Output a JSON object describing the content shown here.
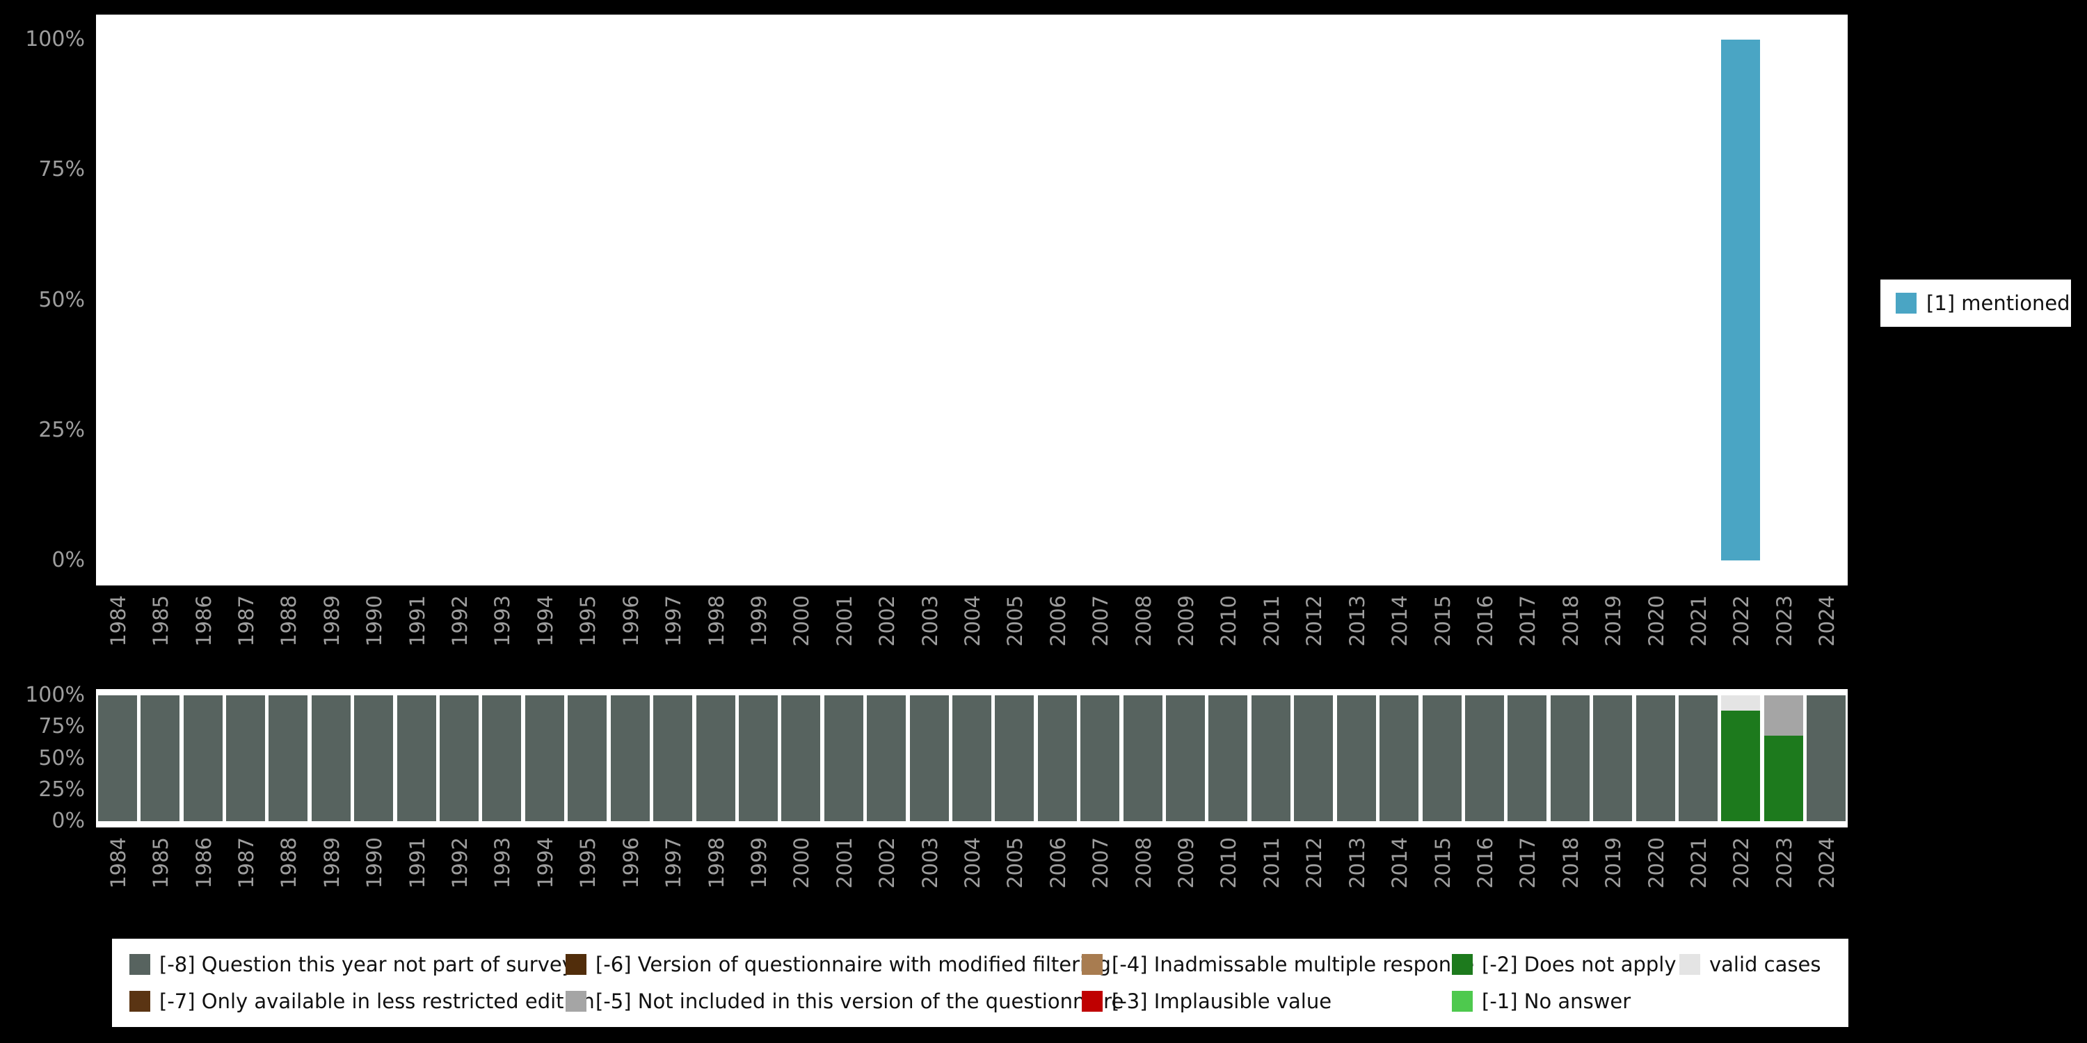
{
  "colors": {
    "background": "#000000",
    "plot_background": "#ffffff",
    "axis_text": "#9e9e9e",
    "mentioned": "#4aa5c4",
    "m8": "#57635f",
    "m7": "#5a3413",
    "m6": "#512d0b",
    "m5": "#a5a5a5",
    "m4": "#a87c50",
    "m3": "#bf0000",
    "m2": "#1d7a1d",
    "m1": "#4ec94e",
    "valid": "#e4e4e4"
  },
  "missing_legend": {
    "items": [
      {
        "label": "[-8] Question this year not part of survey",
        "color_key": "m8",
        "row": 1,
        "col": 1
      },
      {
        "label": "[-7] Only available in less restricted edition",
        "color_key": "m7",
        "row": 2,
        "col": 1
      },
      {
        "label": "[-6] Version of questionnaire with modified filtering",
        "color_key": "m6",
        "row": 1,
        "col": 2
      },
      {
        "label": "[-5] Not included in this version of the questionnaire",
        "color_key": "m5",
        "row": 2,
        "col": 2
      },
      {
        "label": "[-4] Inadmissable multiple response",
        "color_key": "m4",
        "row": 1,
        "col": 3
      },
      {
        "label": "[-3] Implausible value",
        "color_key": "m3",
        "row": 2,
        "col": 3
      },
      {
        "label": "[-2] Does not apply",
        "color_key": "m2",
        "row": 1,
        "col": 4
      },
      {
        "label": "[-1] No answer",
        "color_key": "m1",
        "row": 2,
        "col": 4
      },
      {
        "label": "valid cases",
        "color_key": "valid",
        "row": 1,
        "col": 5
      }
    ]
  },
  "chart_data": [
    {
      "type": "bar",
      "title": "",
      "xlabel": "",
      "ylabel": "",
      "ylim": [
        0,
        100
      ],
      "xtick_rotation": 90,
      "legend_position": "right",
      "yticks": [
        {
          "v": 0,
          "label": "0%"
        },
        {
          "v": 25,
          "label": "25%"
        },
        {
          "v": 50,
          "label": "50%"
        },
        {
          "v": 75,
          "label": "75%"
        },
        {
          "v": 100,
          "label": "100%"
        }
      ],
      "x": [
        "1984",
        "1985",
        "1986",
        "1987",
        "1988",
        "1989",
        "1990",
        "1991",
        "1992",
        "1993",
        "1994",
        "1995",
        "1996",
        "1997",
        "1998",
        "1999",
        "2000",
        "2001",
        "2002",
        "2003",
        "2004",
        "2005",
        "2006",
        "2007",
        "2008",
        "2009",
        "2010",
        "2011",
        "2012",
        "2013",
        "2014",
        "2015",
        "2016",
        "2017",
        "2018",
        "2019",
        "2020",
        "2021",
        "2022",
        "2023",
        "2024"
      ],
      "series": [
        {
          "name": "[1] mentioned",
          "color_key": "mentioned",
          "values": [
            0,
            0,
            0,
            0,
            0,
            0,
            0,
            0,
            0,
            0,
            0,
            0,
            0,
            0,
            0,
            0,
            0,
            0,
            0,
            0,
            0,
            0,
            0,
            0,
            0,
            0,
            0,
            0,
            0,
            0,
            0,
            0,
            0,
            0,
            0,
            0,
            0,
            0,
            100,
            0,
            0
          ]
        }
      ]
    },
    {
      "type": "bar",
      "stacked": true,
      "title": "",
      "xlabel": "",
      "ylabel": "",
      "ylim": [
        0,
        100
      ],
      "xtick_rotation": 90,
      "legend_position": "bottom",
      "yticks": [
        {
          "v": 0,
          "label": "0%"
        },
        {
          "v": 25,
          "label": "25%"
        },
        {
          "v": 50,
          "label": "50%"
        },
        {
          "v": 75,
          "label": "75%"
        },
        {
          "v": 100,
          "label": "100%"
        }
      ],
      "x": [
        "1984",
        "1985",
        "1986",
        "1987",
        "1988",
        "1989",
        "1990",
        "1991",
        "1992",
        "1993",
        "1994",
        "1995",
        "1996",
        "1997",
        "1998",
        "1999",
        "2000",
        "2001",
        "2002",
        "2003",
        "2004",
        "2005",
        "2006",
        "2007",
        "2008",
        "2009",
        "2010",
        "2011",
        "2012",
        "2013",
        "2014",
        "2015",
        "2016",
        "2017",
        "2018",
        "2019",
        "2020",
        "2021",
        "2022",
        "2023",
        "2024"
      ],
      "series": [
        {
          "name": "[-8] Question this year not part of survey",
          "color_key": "m8",
          "values": [
            100,
            100,
            100,
            100,
            100,
            100,
            100,
            100,
            100,
            100,
            100,
            100,
            100,
            100,
            100,
            100,
            100,
            100,
            100,
            100,
            100,
            100,
            100,
            100,
            100,
            100,
            100,
            100,
            100,
            100,
            100,
            100,
            100,
            100,
            100,
            100,
            100,
            100,
            0,
            0,
            100
          ]
        },
        {
          "name": "[-2] Does not apply",
          "color_key": "m2",
          "values": [
            0,
            0,
            0,
            0,
            0,
            0,
            0,
            0,
            0,
            0,
            0,
            0,
            0,
            0,
            0,
            0,
            0,
            0,
            0,
            0,
            0,
            0,
            0,
            0,
            0,
            0,
            0,
            0,
            0,
            0,
            0,
            0,
            0,
            0,
            0,
            0,
            0,
            0,
            88,
            68,
            0
          ]
        },
        {
          "name": "[-5] Not included in this version of the questionnaire",
          "color_key": "m5",
          "values": [
            0,
            0,
            0,
            0,
            0,
            0,
            0,
            0,
            0,
            0,
            0,
            0,
            0,
            0,
            0,
            0,
            0,
            0,
            0,
            0,
            0,
            0,
            0,
            0,
            0,
            0,
            0,
            0,
            0,
            0,
            0,
            0,
            0,
            0,
            0,
            0,
            0,
            0,
            0,
            32,
            0
          ]
        },
        {
          "name": "valid cases",
          "color_key": "valid",
          "values": [
            0,
            0,
            0,
            0,
            0,
            0,
            0,
            0,
            0,
            0,
            0,
            0,
            0,
            0,
            0,
            0,
            0,
            0,
            0,
            0,
            0,
            0,
            0,
            0,
            0,
            0,
            0,
            0,
            0,
            0,
            0,
            0,
            0,
            0,
            0,
            0,
            0,
            0,
            12,
            0,
            0
          ]
        }
      ]
    }
  ]
}
